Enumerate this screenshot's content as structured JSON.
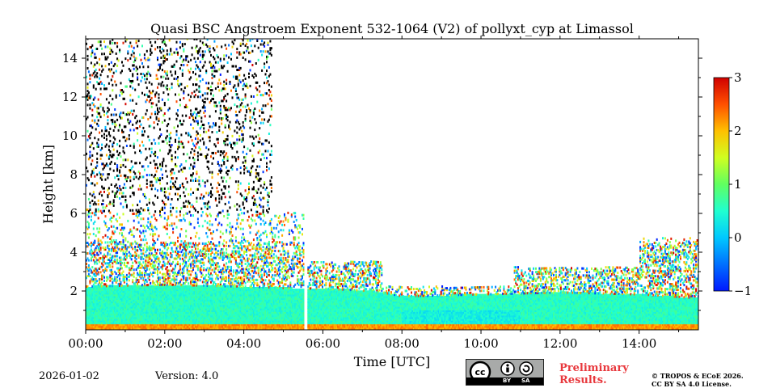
{
  "chart_data": {
    "type": "heatmap",
    "title": "Quasi BSC Angstroem Exponent 532-1064 (V2) of pollyxt_cyp at Limassol",
    "xlabel": "Time [UTC]",
    "ylabel": "Height [km]",
    "x_ticks": [
      "00:00",
      "02:00",
      "04:00",
      "06:00",
      "08:00",
      "10:00",
      "12:00",
      "14:00"
    ],
    "x_tick_hours": [
      0,
      2,
      4,
      6,
      8,
      10,
      12,
      14
    ],
    "y_ticks": [
      "2",
      "4",
      "6",
      "8",
      "10",
      "12",
      "14"
    ],
    "y_tick_values": [
      2,
      4,
      6,
      8,
      10,
      12,
      14
    ],
    "xlim_hours": [
      0,
      15.5
    ],
    "ylim_km": [
      0,
      15
    ],
    "colorbar": {
      "min": -1,
      "max": 3,
      "ticks": [
        "3",
        "2",
        "1",
        "0",
        "−1"
      ],
      "tick_values": [
        3,
        2,
        1,
        0,
        -1
      ]
    },
    "data_gap_hours": [
      5.5,
      5.6
    ],
    "boundary_layer_top_km": [
      {
        "t": 0,
        "h": 2.2
      },
      {
        "t": 2,
        "h": 2.3
      },
      {
        "t": 4,
        "h": 2.2
      },
      {
        "t": 5.5,
        "h": 2.1
      },
      {
        "t": 6,
        "h": 2.1
      },
      {
        "t": 7,
        "h": 2.0
      },
      {
        "t": 7.5,
        "h": 1.9
      },
      {
        "t": 8,
        "h": 1.7
      },
      {
        "t": 10,
        "h": 1.8
      },
      {
        "t": 12,
        "h": 1.9
      },
      {
        "t": 14,
        "h": 1.8
      },
      {
        "t": 15.5,
        "h": 1.6
      }
    ]
  },
  "footer": {
    "date": "2026-01-02",
    "version": "Version: 4.0",
    "preliminary_line1": "Preliminary",
    "preliminary_line2": "Results.",
    "copyright_line1": "© TROPOS & ECoE 2026.",
    "copyright_line2": "CC BY SA 4.0 License.",
    "cc_by": "BY",
    "cc_sa": "SA"
  }
}
